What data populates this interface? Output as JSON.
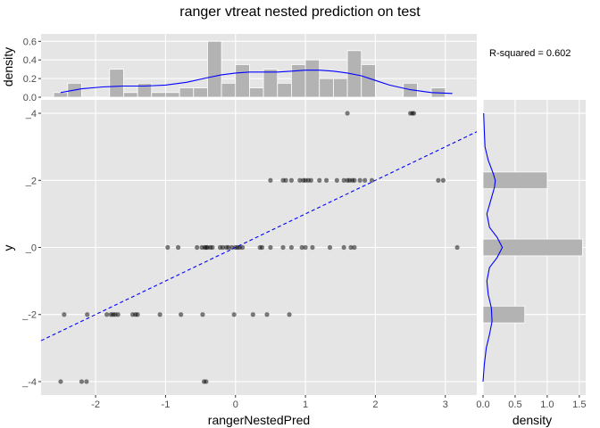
{
  "title": "ranger vtreat nested prediction on test",
  "annotation": "R-squared =  0.602",
  "colors": {
    "panel_bg": "#e5e5e5",
    "grid_major": "#ffffff",
    "bar_fill": "#b3b3b3",
    "point": "#000000",
    "density_line": "#0000ff",
    "fit_line": "#0000ff"
  },
  "chart_data": [
    {
      "id": "main",
      "type": "scatter",
      "xlabel": "rangerNestedPred",
      "ylabel": "y",
      "xlim": [
        -2.78,
        3.45
      ],
      "ylim": [
        -4.4,
        4.4
      ],
      "x_ticks": [
        -2,
        -1,
        0,
        1,
        2,
        3
      ],
      "y_ticks": [
        -4,
        -2,
        0,
        2,
        4
      ],
      "x_tick_labels": [
        "-2",
        "-1",
        "0",
        "1",
        "2",
        "3"
      ],
      "y_tick_labels": [
        "_-4",
        "_-2",
        "_0",
        "_2",
        "_4"
      ],
      "grid": true,
      "fit_line": {
        "slope": 1.0,
        "intercept": 0.0,
        "style": "dashed"
      },
      "points": [
        [
          1.6,
          4
        ],
        [
          2.5,
          4
        ],
        [
          2.55,
          4
        ],
        [
          2.53,
          4
        ],
        [
          0.5,
          2
        ],
        [
          0.68,
          2
        ],
        [
          0.72,
          2
        ],
        [
          0.8,
          2
        ],
        [
          0.92,
          2
        ],
        [
          0.97,
          2
        ],
        [
          1.0,
          2
        ],
        [
          1.04,
          2
        ],
        [
          1.08,
          2
        ],
        [
          1.2,
          2
        ],
        [
          1.3,
          2
        ],
        [
          1.45,
          2
        ],
        [
          1.55,
          2
        ],
        [
          1.6,
          2
        ],
        [
          1.63,
          2
        ],
        [
          1.67,
          2
        ],
        [
          1.7,
          2
        ],
        [
          1.78,
          2
        ],
        [
          1.85,
          2
        ],
        [
          1.95,
          2
        ],
        [
          2.9,
          2
        ],
        [
          2.97,
          2
        ],
        [
          -0.97,
          0
        ],
        [
          -0.82,
          0
        ],
        [
          -0.55,
          0
        ],
        [
          -0.48,
          0
        ],
        [
          -0.44,
          0
        ],
        [
          -0.42,
          0
        ],
        [
          -0.4,
          0
        ],
        [
          -0.36,
          0
        ],
        [
          -0.33,
          0
        ],
        [
          -0.22,
          0
        ],
        [
          -0.18,
          0
        ],
        [
          -0.13,
          0
        ],
        [
          -0.1,
          0
        ],
        [
          -0.05,
          0
        ],
        [
          0.0,
          0
        ],
        [
          0.03,
          0
        ],
        [
          0.06,
          0
        ],
        [
          0.1,
          0
        ],
        [
          0.35,
          0
        ],
        [
          0.38,
          0
        ],
        [
          0.5,
          0
        ],
        [
          0.68,
          0
        ],
        [
          0.8,
          0
        ],
        [
          0.95,
          0
        ],
        [
          1.0,
          0
        ],
        [
          1.1,
          0
        ],
        [
          1.35,
          0
        ],
        [
          1.55,
          0
        ],
        [
          1.65,
          0
        ],
        [
          1.7,
          0
        ],
        [
          3.17,
          0
        ],
        [
          -2.45,
          -2
        ],
        [
          -2.12,
          -2
        ],
        [
          -1.84,
          -2
        ],
        [
          -1.78,
          -2
        ],
        [
          -1.75,
          -2
        ],
        [
          -1.72,
          -2
        ],
        [
          -1.68,
          -2
        ],
        [
          -1.47,
          -2
        ],
        [
          -1.43,
          -2
        ],
        [
          -1.4,
          -2
        ],
        [
          -1.08,
          -2
        ],
        [
          -0.78,
          -2
        ],
        [
          -0.47,
          -2
        ],
        [
          -0.02,
          -2
        ],
        [
          0.25,
          -2
        ],
        [
          0.45,
          -2
        ],
        [
          0.77,
          -2
        ],
        [
          -2.5,
          -4
        ],
        [
          -2.2,
          -4
        ],
        [
          -2.13,
          -4
        ],
        [
          -0.45,
          -4
        ],
        [
          -0.42,
          -4
        ]
      ]
    },
    {
      "id": "top-hist",
      "type": "bar",
      "ylabel": "density",
      "xlim": [
        -2.78,
        3.45
      ],
      "ylim": [
        0,
        0.68
      ],
      "y_ticks": [
        0.0,
        0.2,
        0.4,
        0.6
      ],
      "y_tick_labels": [
        "0.0",
        "0.2",
        "0.4",
        "0.6"
      ],
      "bin_width": 0.2,
      "bin_starts": [
        -2.6,
        -2.4,
        -2.2,
        -2.0,
        -1.8,
        -1.6,
        -1.4,
        -1.2,
        -1.0,
        -0.8,
        -0.6,
        -0.4,
        -0.2,
        0.0,
        0.2,
        0.4,
        0.6,
        0.8,
        1.0,
        1.2,
        1.4,
        1.6,
        1.8,
        2.0,
        2.2,
        2.4,
        2.6,
        2.8,
        3.0
      ],
      "values": [
        0.05,
        0.15,
        0.0,
        0.0,
        0.3,
        0.05,
        0.15,
        0.05,
        0.05,
        0.1,
        0.1,
        0.6,
        0.15,
        0.35,
        0.1,
        0.3,
        0.15,
        0.35,
        0.4,
        0.2,
        0.2,
        0.5,
        0.35,
        0.0,
        0.0,
        0.15,
        0.0,
        0.1,
        0.0
      ],
      "density_curve": {
        "x": [
          -2.5,
          -2.2,
          -1.9,
          -1.6,
          -1.3,
          -1.0,
          -0.7,
          -0.4,
          -0.2,
          0.0,
          0.2,
          0.4,
          0.6,
          0.8,
          1.0,
          1.2,
          1.4,
          1.6,
          1.8,
          2.0,
          2.2,
          2.5,
          2.8,
          3.1
        ],
        "y": [
          0.05,
          0.09,
          0.11,
          0.12,
          0.12,
          0.13,
          0.16,
          0.21,
          0.24,
          0.26,
          0.27,
          0.27,
          0.27,
          0.28,
          0.29,
          0.29,
          0.28,
          0.26,
          0.23,
          0.18,
          0.13,
          0.08,
          0.05,
          0.04
        ]
      }
    },
    {
      "id": "right-hist",
      "type": "bar",
      "orientation": "horizontal",
      "xlabel": "density",
      "xlim": [
        0,
        1.6
      ],
      "x_ticks": [
        0.0,
        0.5,
        1.0,
        1.5
      ],
      "x_tick_labels": [
        "0.0",
        "0.5",
        "1.0",
        "1.5"
      ],
      "bins": [
        {
          "y": -2,
          "value": 0.65
        },
        {
          "y": 0,
          "value": 1.55
        },
        {
          "y": 2,
          "value": 1.0
        }
      ],
      "density_curve": {
        "y": [
          -4.0,
          -3.5,
          -3.0,
          -2.6,
          -2.2,
          -1.8,
          -1.4,
          -1.0,
          -0.6,
          -0.3,
          0.0,
          0.3,
          0.6,
          1.0,
          1.4,
          1.8,
          2.0,
          2.2,
          2.6,
          3.0,
          3.5,
          4.0
        ],
        "x": [
          0.0,
          0.02,
          0.05,
          0.1,
          0.14,
          0.13,
          0.08,
          0.06,
          0.1,
          0.22,
          0.3,
          0.22,
          0.1,
          0.06,
          0.12,
          0.18,
          0.19,
          0.16,
          0.08,
          0.03,
          0.02,
          0.01
        ]
      }
    }
  ]
}
